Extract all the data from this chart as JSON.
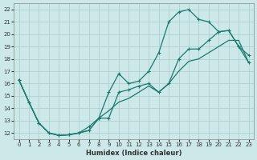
{
  "xlabel": "Humidex (Indice chaleur)",
  "background_color": "#cce8e8",
  "grid_color": "#aacccc",
  "line_color": "#1a7a6e",
  "xlim": [
    -0.5,
    23.5
  ],
  "ylim": [
    11.5,
    22.5
  ],
  "xticks": [
    0,
    1,
    2,
    3,
    4,
    5,
    6,
    7,
    8,
    9,
    10,
    11,
    12,
    13,
    14,
    15,
    16,
    17,
    18,
    19,
    20,
    21,
    22,
    23
  ],
  "yticks": [
    12,
    13,
    14,
    15,
    16,
    17,
    18,
    19,
    20,
    21,
    22
  ],
  "curve1_x": [
    0,
    1,
    2,
    3,
    4,
    5,
    6,
    7,
    8,
    9,
    10,
    11,
    12,
    13,
    14,
    15,
    16,
    17,
    18,
    19,
    20,
    21,
    22,
    23
  ],
  "curve1_y": [
    16.3,
    14.5,
    12.8,
    12.0,
    11.8,
    11.85,
    12.0,
    12.2,
    13.2,
    15.3,
    16.8,
    16.0,
    16.2,
    17.0,
    18.5,
    21.0,
    21.8,
    22.0,
    21.2,
    21.0,
    20.2,
    20.3,
    19.0,
    18.3
  ],
  "curve2_x": [
    0,
    1,
    2,
    3,
    4,
    5,
    6,
    7,
    8,
    9,
    10,
    11,
    12,
    13,
    14,
    15,
    16,
    17,
    18,
    19,
    20,
    21,
    22,
    23
  ],
  "curve2_y": [
    16.3,
    14.5,
    12.8,
    12.0,
    11.8,
    11.85,
    12.0,
    12.5,
    13.2,
    13.2,
    15.3,
    15.5,
    15.8,
    16.0,
    15.3,
    16.0,
    18.0,
    18.8,
    18.8,
    19.5,
    20.2,
    20.3,
    19.0,
    17.7
  ],
  "curve3_x": [
    0,
    1,
    2,
    3,
    4,
    5,
    6,
    7,
    8,
    9,
    10,
    11,
    12,
    13,
    14,
    15,
    16,
    17,
    18,
    19,
    20,
    21,
    22,
    23
  ],
  "curve3_y": [
    16.3,
    14.5,
    12.8,
    12.0,
    11.8,
    11.85,
    12.0,
    12.2,
    13.2,
    13.8,
    14.5,
    14.8,
    15.3,
    15.8,
    15.3,
    16.0,
    17.0,
    17.8,
    18.0,
    18.5,
    19.0,
    19.5,
    19.5,
    17.7
  ]
}
